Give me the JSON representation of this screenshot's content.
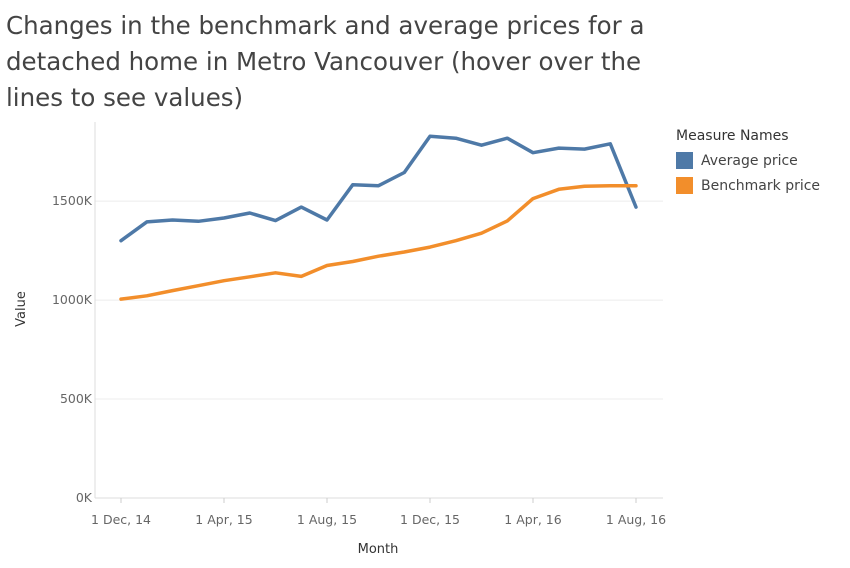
{
  "chart_data": {
    "type": "line",
    "title": "Changes in the benchmark and average prices for a detached home in Metro Vancouver (hover over the lines to see values)",
    "xlabel": "Month",
    "ylabel": "Value",
    "x": [
      "2014-12",
      "2015-01",
      "2015-02",
      "2015-03",
      "2015-04",
      "2015-05",
      "2015-06",
      "2015-07",
      "2015-08",
      "2015-09",
      "2015-10",
      "2015-11",
      "2015-12",
      "2016-01",
      "2016-02",
      "2016-03",
      "2016-04",
      "2016-05",
      "2016-06",
      "2016-07",
      "2016-08"
    ],
    "x_ticks": [
      "1 Dec, 14",
      "1 Apr, 15",
      "1 Aug, 15",
      "1 Dec, 15",
      "1 Apr, 16",
      "1 Aug, 16"
    ],
    "y_ticks": [
      "0K",
      "500K",
      "1000K",
      "1500K"
    ],
    "ylim": [
      0,
      1900000
    ],
    "grid": true,
    "legend_title": "Measure Names",
    "legend_position": "right",
    "series": [
      {
        "name": "Average price",
        "color": "#4e79a7",
        "values": [
          1300000,
          1395000,
          1405000,
          1398000,
          1415000,
          1440000,
          1402000,
          1470000,
          1405000,
          1583000,
          1578000,
          1645000,
          1828000,
          1818000,
          1783000,
          1818000,
          1745000,
          1768000,
          1763000,
          1790000,
          1470000
        ]
      },
      {
        "name": "Benchmark price",
        "color": "#f28e2b",
        "values": [
          1005000,
          1022000,
          1048000,
          1073000,
          1098000,
          1118000,
          1138000,
          1120000,
          1175000,
          1195000,
          1222000,
          1243000,
          1268000,
          1300000,
          1338000,
          1400000,
          1513000,
          1560000,
          1575000,
          1578000,
          1578000
        ]
      }
    ]
  }
}
